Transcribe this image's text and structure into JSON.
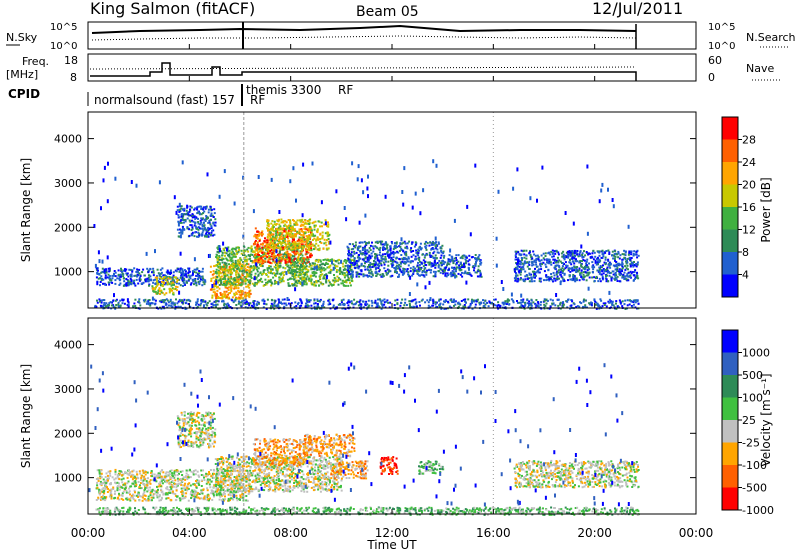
{
  "header": {
    "station": "King Salmon (fitACF)",
    "beam": "Beam 05",
    "date": "12/Jul/2011"
  },
  "top_panels": {
    "nsky_label": "N.Sky",
    "nsearch_label": "N.Search",
    "freq_label": "Freq.",
    "freq_unit": "[MHz]",
    "nave_label": "Nave",
    "cpid_label": "CPID",
    "nsky_ticks": [
      "10^5",
      "10^0"
    ],
    "nsearch_ticks": [
      "10^5",
      "10^0"
    ],
    "freq_ticks": [
      "18",
      "8"
    ],
    "nave_ticks": [
      "60",
      "0"
    ],
    "cpid_segments": [
      {
        "label": "normalsound (fast) 157",
        "start_h": 0.0
      },
      {
        "label": "themis 3300",
        "start_h": 6.15
      }
    ],
    "rf_label": "RF"
  },
  "x_axis": {
    "label": "Time UT",
    "ticks": [
      "00:00",
      "04:00",
      "08:00",
      "12:00",
      "16:00",
      "20:00",
      "00:00"
    ]
  },
  "power_panel": {
    "ylabel": "Slant Range [km]",
    "yticks": [
      "1000",
      "2000",
      "3000",
      "4000"
    ],
    "colorbar_label": "Power [dB]",
    "colorbar_ticks": [
      "4",
      "8",
      "12",
      "16",
      "20",
      "24",
      "28"
    ],
    "colors": [
      "#0000ff",
      "#2060d0",
      "#2e8b57",
      "#40b040",
      "#c8c800",
      "#ffa500",
      "#ff6000",
      "#ff0000"
    ]
  },
  "velocity_panel": {
    "ylabel": "Slant Range [km]",
    "yticks": [
      "1000",
      "2000",
      "3000",
      "4000"
    ],
    "colorbar_label": "Velocity [m s⁻¹]",
    "colorbar_ticks": [
      "1000",
      "500",
      "100",
      "25",
      "-25",
      "-100",
      "-500",
      "-1000"
    ],
    "colors": [
      "#0000ff",
      "#3060c0",
      "#2e8b57",
      "#40c040",
      "#c0c0c0",
      "#ffa500",
      "#ff6000",
      "#ff0000"
    ]
  },
  "chart_data": {
    "type": "heatmap",
    "x_range_hours": [
      0,
      24
    ],
    "y_range_km": [
      180,
      4600
    ],
    "power_regions": [
      {
        "t0": 0.3,
        "t1": 4.6,
        "r0": 700,
        "r1": 1100,
        "level": 1
      },
      {
        "t0": 2.5,
        "t1": 3.5,
        "r0": 500,
        "r1": 900,
        "level": 4
      },
      {
        "t0": 3.5,
        "t1": 5.0,
        "r0": 1800,
        "r1": 2500,
        "level": 1
      },
      {
        "t0": 4.8,
        "t1": 6.4,
        "r0": 400,
        "r1": 1200,
        "level": 5
      },
      {
        "t0": 5.0,
        "t1": 8.6,
        "r0": 700,
        "r1": 1600,
        "level": 3
      },
      {
        "t0": 6.5,
        "t1": 8.8,
        "r0": 1200,
        "r1": 2000,
        "level": 6
      },
      {
        "t0": 7.0,
        "t1": 9.5,
        "r0": 1500,
        "r1": 2200,
        "level": 4
      },
      {
        "t0": 8.0,
        "t1": 10.4,
        "r0": 700,
        "r1": 1300,
        "level": 3
      },
      {
        "t0": 10.2,
        "t1": 14.0,
        "r0": 900,
        "r1": 1700,
        "level": 1
      },
      {
        "t0": 14.0,
        "t1": 15.5,
        "r0": 900,
        "r1": 1400,
        "level": 1
      },
      {
        "t0": 16.8,
        "t1": 21.7,
        "r0": 800,
        "r1": 1500,
        "level": 1
      },
      {
        "t0": 0.2,
        "t1": 21.7,
        "r0": 180,
        "r1": 400,
        "level": 1
      }
    ],
    "velocity_regions": [
      {
        "t0": 0.3,
        "t1": 6.4,
        "r0": 500,
        "r1": 1200,
        "level": 4
      },
      {
        "t0": 3.5,
        "t1": 5.0,
        "r0": 1700,
        "r1": 2500,
        "level": 4
      },
      {
        "t0": 5.0,
        "t1": 10.0,
        "r0": 700,
        "r1": 1500,
        "level": 4
      },
      {
        "t0": 6.5,
        "t1": 8.5,
        "r0": 1300,
        "r1": 1900,
        "level": 5
      },
      {
        "t0": 8.5,
        "t1": 10.5,
        "r0": 1500,
        "r1": 2000,
        "level": 5
      },
      {
        "t0": 9.5,
        "t1": 11.0,
        "r0": 1000,
        "r1": 1400,
        "level": 5
      },
      {
        "t0": 11.5,
        "t1": 12.2,
        "r0": 1100,
        "r1": 1500,
        "level": 7
      },
      {
        "t0": 13.0,
        "t1": 14.0,
        "r0": 1100,
        "r1": 1400,
        "level": 3
      },
      {
        "t0": 16.8,
        "t1": 21.7,
        "r0": 800,
        "r1": 1400,
        "level": 4
      },
      {
        "t0": 0.2,
        "t1": 21.7,
        "r0": 180,
        "r1": 350,
        "level": 3
      }
    ]
  }
}
